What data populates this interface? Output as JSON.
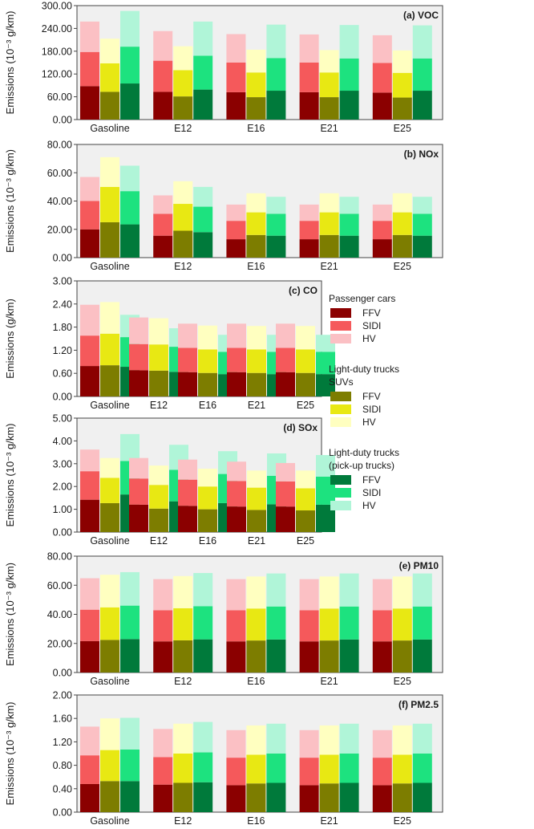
{
  "chart_data": {
    "type": "bar",
    "layout": "stacked-grouped",
    "categories": [
      "Gasoline",
      "E12",
      "E16",
      "E21",
      "E25"
    ],
    "vehicle_groups": [
      "Passenger cars",
      "Light-duty trucks SUVs",
      "Light-duty trucks (pick-up trucks)"
    ],
    "stack_layers": [
      "FFV",
      "SIDI",
      "HV"
    ],
    "grid": false,
    "colors": {
      "plot_bg": "#f0f0f0",
      "Passenger cars": {
        "FFV": "#8b0000",
        "SIDI": "#f5595b",
        "HV": "#fbc0c4"
      },
      "Light-duty trucks SUVs": {
        "FFV": "#7d7d00",
        "SIDI": "#e8e813",
        "HV": "#ffffc0"
      },
      "Light-duty trucks (pick-up trucks)": {
        "FFV": "#007a3b",
        "SIDI": "#1de27f",
        "HV": "#b0f5d8"
      }
    },
    "legend": {
      "placement": "right",
      "groups": [
        {
          "title_lines": [
            "Passenger cars"
          ],
          "entries": [
            "FFV",
            "SIDI",
            "HV"
          ],
          "group": "Passenger cars"
        },
        {
          "title_lines": [
            "Light-duty trucks",
            "SUVs"
          ],
          "entries": [
            "FFV",
            "SIDI",
            "HV"
          ],
          "group": "Light-duty trucks SUVs"
        },
        {
          "title_lines": [
            "Light-duty trucks",
            "(pick-up trucks)"
          ],
          "entries": [
            "FFV",
            "SIDI",
            "HV"
          ],
          "group": "Light-duty trucks (pick-up trucks)"
        }
      ]
    },
    "panels": [
      {
        "title": "(a) VOC",
        "ylabel": "Emissions (10⁻³ g/km)",
        "ylim": [
          0,
          300
        ],
        "yticks": [
          "0.00",
          "60.00",
          "120.00",
          "180.00",
          "240.00",
          "300.00"
        ],
        "series": [
          {
            "group": "Passenger cars",
            "FFV": [
              88,
              73,
              72,
              72,
              71
            ],
            "SIDI": [
              90,
              82,
              78,
              78,
              78
            ],
            "HV": [
              80,
              78,
              75,
              74,
              73
            ]
          },
          {
            "group": "Light-duty trucks SUVs",
            "FFV": [
              73,
              61,
              59,
              59,
              58
            ],
            "SIDI": [
              75,
              69,
              65,
              65,
              65
            ],
            "HV": [
              65,
              63,
              60,
              59,
              59
            ]
          },
          {
            "group": "Light-duty trucks (pick-up trucks)",
            "FFV": [
              95,
              79,
              76,
              76,
              76
            ],
            "SIDI": [
              97,
              89,
              86,
              85,
              85
            ],
            "HV": [
              94,
              90,
              88,
              88,
              87
            ]
          }
        ]
      },
      {
        "title": "(b) NOx",
        "ylabel": "Emissions (10⁻³ g/km)",
        "ylim": [
          0,
          80
        ],
        "yticks": [
          "0.00",
          "20.00",
          "40.00",
          "60.00",
          "80.00"
        ],
        "series": [
          {
            "group": "Passenger cars",
            "FFV": [
              20,
              15.5,
              13,
              13,
              13
            ],
            "SIDI": [
              20,
              15.5,
              13,
              13,
              13
            ],
            "HV": [
              17,
              13,
              11.5,
              11.5,
              11.5
            ]
          },
          {
            "group": "Light-duty trucks SUVs",
            "FFV": [
              25,
              19,
              16,
              16,
              16
            ],
            "SIDI": [
              25,
              19,
              16,
              16,
              16
            ],
            "HV": [
              21,
              16,
              13.5,
              13.5,
              13.5
            ]
          },
          {
            "group": "Light-duty trucks (pick-up trucks)",
            "FFV": [
              23.5,
              18,
              15.5,
              15.5,
              15.5
            ],
            "SIDI": [
              23.5,
              18,
              15.5,
              15.5,
              15.5
            ],
            "HV": [
              18,
              14,
              12,
              12,
              12
            ]
          }
        ]
      },
      {
        "title": "(c) CO",
        "ylabel": "Emissions (g/km)",
        "ylim": [
          0,
          3
        ],
        "yticks": [
          "0.00",
          "0.60",
          "1.20",
          "1.80",
          "2.40",
          "3.00"
        ],
        "series": [
          {
            "group": "Passenger cars",
            "FFV": [
              0.79,
              0.68,
              0.63,
              0.63,
              0.63
            ],
            "SIDI": [
              0.79,
              0.68,
              0.63,
              0.63,
              0.63
            ],
            "HV": [
              0.8,
              0.69,
              0.63,
              0.63,
              0.63
            ]
          },
          {
            "group": "Light-duty trucks SUVs",
            "FFV": [
              0.81,
              0.67,
              0.61,
              0.61,
              0.61
            ],
            "SIDI": [
              0.82,
              0.68,
              0.61,
              0.61,
              0.61
            ],
            "HV": [
              0.82,
              0.68,
              0.62,
              0.61,
              0.61
            ]
          },
          {
            "group": "Light-duty trucks (pick-up trucks)",
            "FFV": [
              0.77,
              0.64,
              0.58,
              0.58,
              0.58
            ],
            "SIDI": [
              0.77,
              0.65,
              0.58,
              0.58,
              0.58
            ],
            "HV": [
              0.58,
              0.48,
              0.44,
              0.44,
              0.44
            ]
          }
        ]
      },
      {
        "title": "(d) SOx",
        "ylabel": "Emissions (10⁻³ g/km)",
        "ylim": [
          0,
          5
        ],
        "yticks": [
          "0.00",
          "1.00",
          "2.00",
          "3.00",
          "4.00",
          "5.00"
        ],
        "series": [
          {
            "group": "Passenger cars",
            "FFV": [
              1.42,
              1.2,
              1.15,
              1.12,
              1.12
            ],
            "SIDI": [
              1.25,
              1.15,
              1.15,
              1.12,
              1.1
            ],
            "HV": [
              0.95,
              0.9,
              0.88,
              0.85,
              0.81
            ]
          },
          {
            "group": "Light-duty trucks SUVs",
            "FFV": [
              1.27,
              1.03,
              1.0,
              0.97,
              0.95
            ],
            "SIDI": [
              1.11,
              1.04,
              1.0,
              0.98,
              0.97
            ],
            "HV": [
              0.87,
              0.85,
              0.78,
              0.75,
              0.78
            ]
          },
          {
            "group": "Light-duty trucks (pick-up trucks)",
            "FFV": [
              1.65,
              1.35,
              1.27,
              1.22,
              1.2
            ],
            "SIDI": [
              1.47,
              1.38,
              1.28,
              1.25,
              1.23
            ],
            "HV": [
              1.18,
              1.1,
              1.0,
              0.98,
              0.95
            ]
          }
        ]
      },
      {
        "title": "(e) PM10",
        "ylabel": "Emissions (10⁻³ g/km)",
        "ylim": [
          0,
          80
        ],
        "yticks": [
          "0.00",
          "20.00",
          "40.00",
          "60.00",
          "80.00"
        ],
        "series": [
          {
            "group": "Passenger cars",
            "FFV": [
              21.6,
              21.4,
              21.4,
              21.4,
              21.4
            ],
            "SIDI": [
              21.6,
              21.4,
              21.4,
              21.4,
              21.4
            ],
            "HV": [
              21.6,
              21.4,
              21.4,
              21.4,
              21.4
            ]
          },
          {
            "group": "Light-duty trucks SUVs",
            "FFV": [
              22.4,
              22.1,
              22.0,
              22.0,
              22.0
            ],
            "SIDI": [
              22.4,
              22.1,
              22.0,
              22.0,
              22.0
            ],
            "HV": [
              22.4,
              22.1,
              22.0,
              22.0,
              22.0
            ]
          },
          {
            "group": "Light-duty trucks (pick-up trucks)",
            "FFV": [
              23.0,
              22.8,
              22.7,
              22.7,
              22.7
            ],
            "SIDI": [
              23.0,
              22.8,
              22.7,
              22.7,
              22.7
            ],
            "HV": [
              23.0,
              22.8,
              22.7,
              22.7,
              22.7
            ]
          }
        ]
      },
      {
        "title": "(f) PM2.5",
        "ylabel": "Emissions (10⁻³ g/km)",
        "ylim": [
          0,
          2
        ],
        "yticks": [
          "0.00",
          "0.40",
          "0.80",
          "1.20",
          "1.60",
          "2.00"
        ],
        "series": [
          {
            "group": "Passenger cars",
            "FFV": [
              0.48,
              0.47,
              0.46,
              0.46,
              0.46
            ],
            "SIDI": [
              0.49,
              0.47,
              0.47,
              0.47,
              0.47
            ],
            "HV": [
              0.49,
              0.48,
              0.47,
              0.47,
              0.47
            ]
          },
          {
            "group": "Light-duty trucks SUVs",
            "FFV": [
              0.53,
              0.5,
              0.49,
              0.49,
              0.49
            ],
            "SIDI": [
              0.53,
              0.5,
              0.49,
              0.49,
              0.49
            ],
            "HV": [
              0.54,
              0.51,
              0.5,
              0.5,
              0.5
            ]
          },
          {
            "group": "Light-duty trucks (pick-up trucks)",
            "FFV": [
              0.53,
              0.51,
              0.5,
              0.5,
              0.5
            ],
            "SIDI": [
              0.54,
              0.51,
              0.5,
              0.5,
              0.5
            ],
            "HV": [
              0.54,
              0.52,
              0.51,
              0.51,
              0.51
            ]
          }
        ]
      }
    ]
  }
}
